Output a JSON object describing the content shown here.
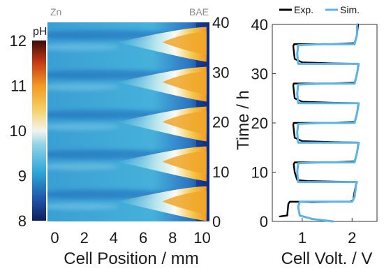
{
  "chart_data": [
    {
      "type": "heatmap",
      "colorbar": {
        "label": "pH",
        "range": [
          8,
          12
        ],
        "ticks": [
          "8",
          "9",
          "10",
          "11",
          "12"
        ]
      },
      "xlabel": "Cell Position  /  mm",
      "xlim": [
        -0.5,
        10.5
      ],
      "xticks": [
        "0",
        "2",
        "4",
        "6",
        "8",
        "10"
      ],
      "ylim": [
        0,
        40
      ],
      "yticks_right": [
        "0",
        "10",
        "20",
        "30",
        "40"
      ],
      "ylabel_right": "Time  /  h",
      "top_left_label": "Zn",
      "top_right_label": "BAE",
      "background_ph": 9.6,
      "pulses": [
        {
          "t_peak": 4,
          "ph_peak": 12
        },
        {
          "t_peak": 12,
          "ph_peak": 12
        },
        {
          "t_peak": 20,
          "ph_peak": 12
        },
        {
          "t_peak": 28,
          "ph_peak": 12
        },
        {
          "t_peak": 36,
          "ph_peak": 12
        }
      ]
    },
    {
      "type": "line",
      "xlabel": "Cell Volt.  /  V",
      "ylabel": "",
      "xlim": [
        0.4,
        2.5
      ],
      "ylim": [
        0,
        40
      ],
      "xticks": [
        "1",
        "2"
      ],
      "yticks": [
        "0",
        "10",
        "20",
        "30",
        "40"
      ],
      "legend_position": "top",
      "series": [
        {
          "name": "Exp.",
          "color": "#000000",
          "points": [
            [
              0.55,
              1.0
            ],
            [
              0.7,
              1.2
            ],
            [
              0.72,
              3.5
            ],
            [
              0.75,
              4.0
            ],
            [
              0.95,
              4.0
            ],
            [
              1.2,
              3.9
            ],
            [
              1.6,
              4.0
            ],
            [
              1.95,
              4.0
            ],
            [
              2.02,
              4.3
            ],
            [
              2.05,
              6.0
            ],
            [
              2.08,
              7.6
            ],
            [
              2.1,
              8.0
            ],
            [
              1.6,
              8.1
            ],
            [
              1.1,
              8.2
            ],
            [
              0.9,
              8.4
            ],
            [
              0.85,
              10.0
            ],
            [
              0.83,
              11.6
            ],
            [
              0.85,
              12.0
            ],
            [
              1.6,
              12.0
            ],
            [
              2.05,
              12.2
            ],
            [
              2.1,
              14.0
            ],
            [
              2.12,
              15.6
            ],
            [
              2.13,
              16.0
            ],
            [
              1.6,
              16.1
            ],
            [
              1.0,
              16.3
            ],
            [
              0.85,
              17.0
            ],
            [
              0.82,
              19.6
            ],
            [
              0.83,
              20.0
            ],
            [
              1.6,
              20.0
            ],
            [
              2.05,
              20.2
            ],
            [
              2.1,
              22.0
            ],
            [
              2.12,
              23.6
            ],
            [
              2.13,
              24.0
            ],
            [
              1.6,
              24.1
            ],
            [
              1.0,
              24.3
            ],
            [
              0.85,
              25.0
            ],
            [
              0.82,
              27.6
            ],
            [
              0.83,
              28.0
            ],
            [
              1.6,
              28.0
            ],
            [
              2.05,
              28.2
            ],
            [
              2.1,
              30.0
            ],
            [
              2.12,
              31.6
            ],
            [
              2.13,
              32.0
            ],
            [
              1.6,
              32.1
            ],
            [
              1.0,
              32.3
            ],
            [
              0.85,
              33.0
            ],
            [
              0.82,
              35.6
            ],
            [
              0.84,
              36.0
            ],
            [
              1.6,
              36.0
            ],
            [
              2.05,
              36.2
            ],
            [
              2.1,
              38.0
            ],
            [
              2.12,
              40.0
            ]
          ]
        },
        {
          "name": "Sim.",
          "color": "#5ab4e5",
          "points": [
            [
              1.62,
              0.0
            ],
            [
              1.2,
              0.5
            ],
            [
              0.95,
              1.2
            ],
            [
              0.92,
              3.0
            ],
            [
              0.95,
              4.0
            ],
            [
              1.5,
              4.0
            ],
            [
              2.0,
              4.0
            ],
            [
              2.05,
              5.0
            ],
            [
              2.08,
              7.5
            ],
            [
              2.1,
              8.0
            ],
            [
              1.5,
              8.0
            ],
            [
              0.92,
              8.0
            ],
            [
              0.9,
              10.0
            ],
            [
              0.92,
              11.8
            ],
            [
              1.4,
              12.0
            ],
            [
              2.05,
              12.0
            ],
            [
              2.1,
              14.0
            ],
            [
              2.13,
              15.8
            ],
            [
              2.12,
              16.0
            ],
            [
              1.5,
              16.0
            ],
            [
              0.92,
              16.0
            ],
            [
              0.9,
              18.0
            ],
            [
              0.92,
              19.8
            ],
            [
              1.4,
              20.0
            ],
            [
              2.05,
              20.0
            ],
            [
              2.1,
              22.0
            ],
            [
              2.13,
              23.8
            ],
            [
              2.12,
              24.0
            ],
            [
              1.5,
              24.0
            ],
            [
              0.92,
              24.0
            ],
            [
              0.9,
              26.0
            ],
            [
              0.92,
              27.8
            ],
            [
              1.4,
              28.0
            ],
            [
              2.05,
              28.0
            ],
            [
              2.1,
              30.0
            ],
            [
              2.13,
              31.8
            ],
            [
              2.12,
              32.0
            ],
            [
              1.5,
              32.0
            ],
            [
              0.92,
              32.0
            ],
            [
              0.9,
              34.0
            ],
            [
              0.92,
              35.8
            ],
            [
              1.4,
              36.0
            ],
            [
              2.05,
              36.0
            ],
            [
              2.1,
              38.0
            ],
            [
              2.1,
              40.0
            ]
          ]
        }
      ]
    }
  ]
}
